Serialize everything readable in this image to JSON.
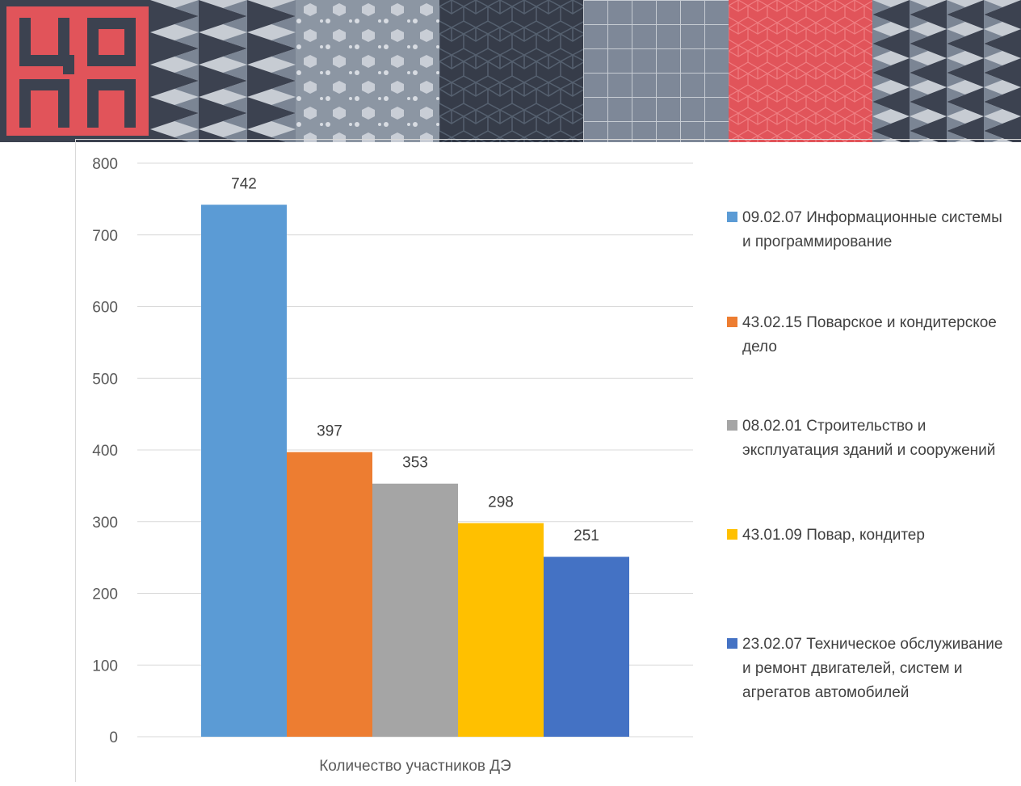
{
  "banner": {
    "logo_text": "ЦОПП"
  },
  "chart_data": {
    "type": "bar",
    "xlabel": "",
    "ylabel": "",
    "categories": [
      "Количество участников ДЭ"
    ],
    "ylim": [
      0,
      800
    ],
    "yticks": [
      0,
      100,
      200,
      300,
      400,
      500,
      600,
      700,
      800
    ],
    "grid": true,
    "legend_position": "right",
    "series": [
      {
        "name": "09.02.07 Информационные системы и программирование",
        "values": [
          742
        ],
        "color": "#5b9bd5"
      },
      {
        "name": "43.02.15 Поварское и кондитерское дело",
        "values": [
          397
        ],
        "color": "#ed7d31"
      },
      {
        "name": "08.02.01 Строительство и эксплуатация зданий и сооружений",
        "values": [
          353
        ],
        "color": "#a5a5a5"
      },
      {
        "name": "43.01.09 Повар, кондитер",
        "values": [
          298
        ],
        "color": "#ffc000"
      },
      {
        "name": "23.02.07 Техническое обслуживание и ремонт двигателей, систем и агрегатов автомобилей",
        "values": [
          251
        ],
        "color": "#4472c4"
      }
    ]
  }
}
